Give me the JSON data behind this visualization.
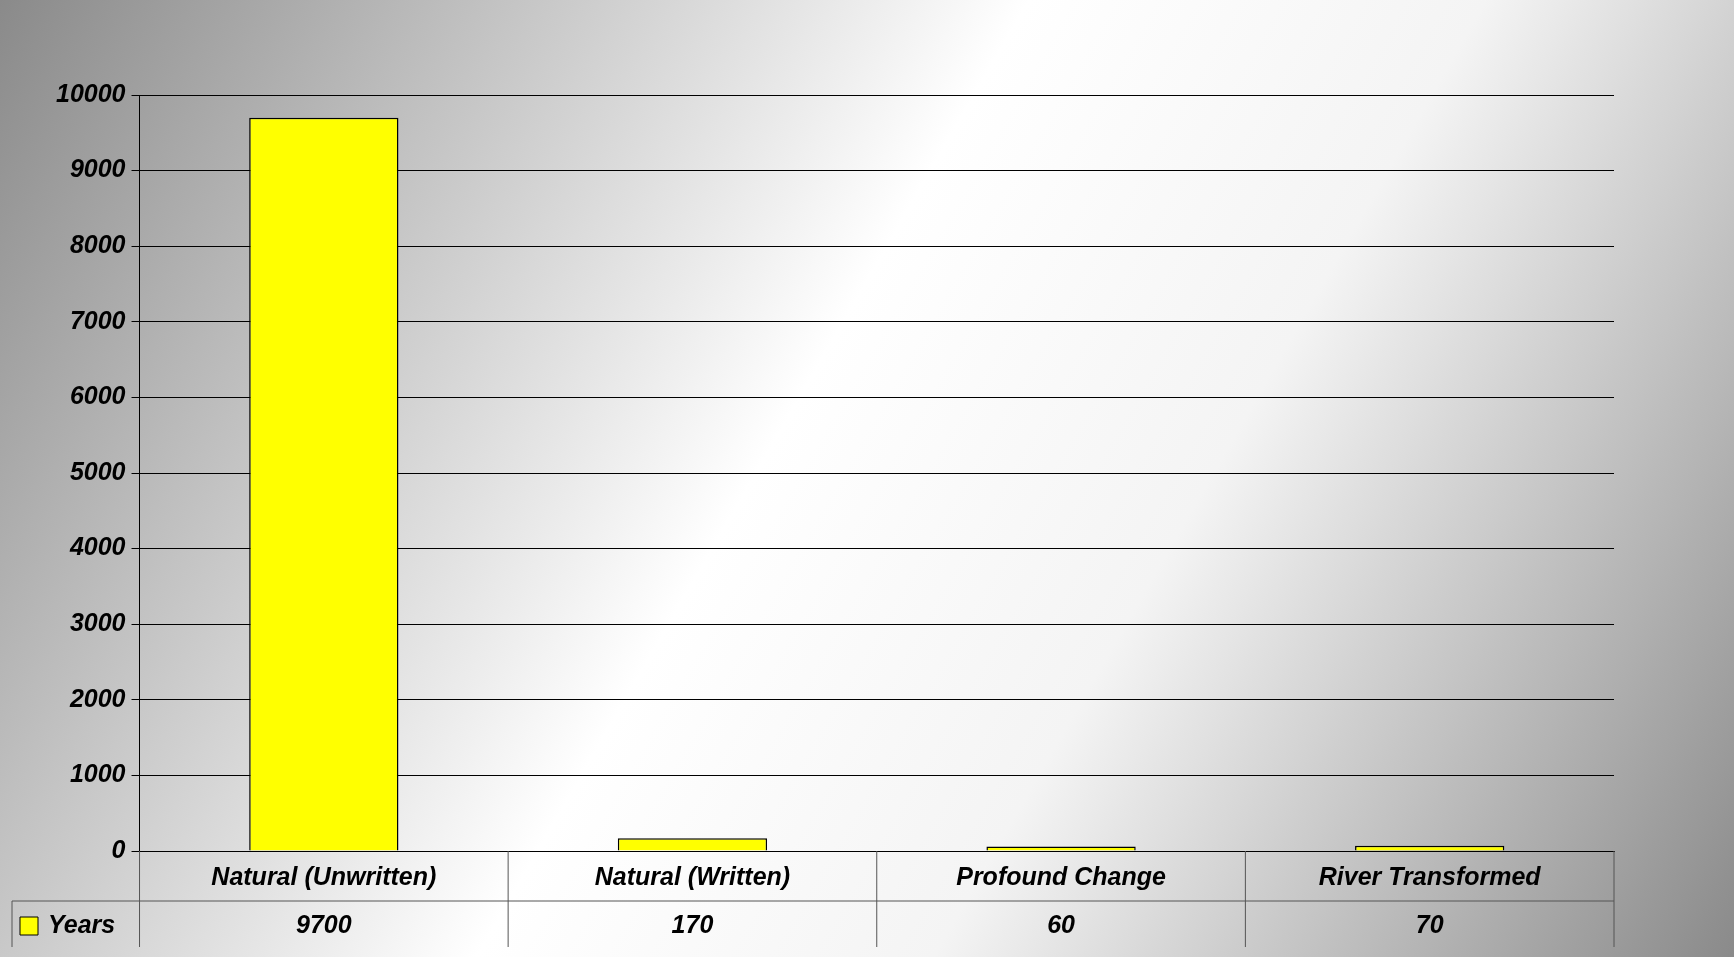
{
  "chart_data": {
    "type": "bar",
    "categories": [
      "Natural (Unwritten)",
      "Natural (Written)",
      "Profound Change",
      "River Transformed"
    ],
    "series": [
      {
        "name": "Years",
        "color": "#ffff00",
        "values": [
          9700,
          170,
          60,
          70
        ]
      }
    ],
    "ylim": [
      0,
      10000
    ],
    "yticks": [
      0,
      1000,
      2000,
      3000,
      4000,
      5000,
      6000,
      7000,
      8000,
      9000,
      10000
    ],
    "grid": "y",
    "legend": "bottom left",
    "data_labels": true
  }
}
